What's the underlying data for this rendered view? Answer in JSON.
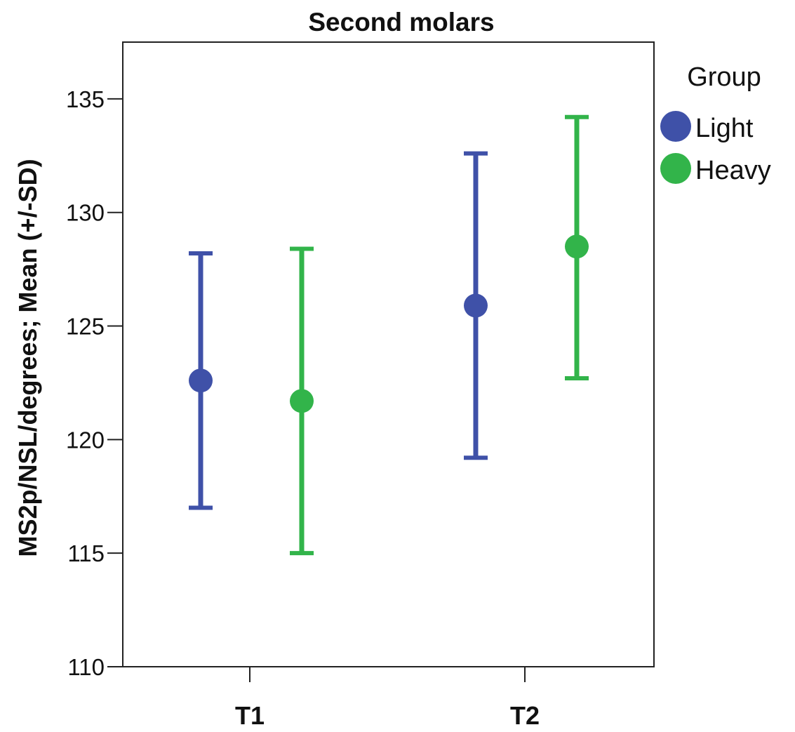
{
  "chart_data": {
    "type": "scatter",
    "subtype": "error-bar",
    "title": "Second molars",
    "xlabel": "",
    "ylabel": "MS2p/NSL/degrees; Mean (+/-SD)",
    "categories": [
      "T1",
      "T2"
    ],
    "ylim": [
      110,
      137.5
    ],
    "yticks": [
      110,
      115,
      120,
      125,
      130,
      135
    ],
    "grid": false,
    "legend": {
      "title": "Group",
      "placement": "right"
    },
    "series": [
      {
        "name": "Light",
        "color": "#3f51a8",
        "mean": [
          122.6,
          125.9
        ],
        "lower": [
          117.0,
          119.2
        ],
        "upper": [
          128.2,
          132.6
        ]
      },
      {
        "name": "Heavy",
        "color": "#32b44a",
        "mean": [
          121.7,
          128.5
        ],
        "lower": [
          115.0,
          122.7
        ],
        "upper": [
          128.4,
          134.2
        ]
      }
    ]
  }
}
